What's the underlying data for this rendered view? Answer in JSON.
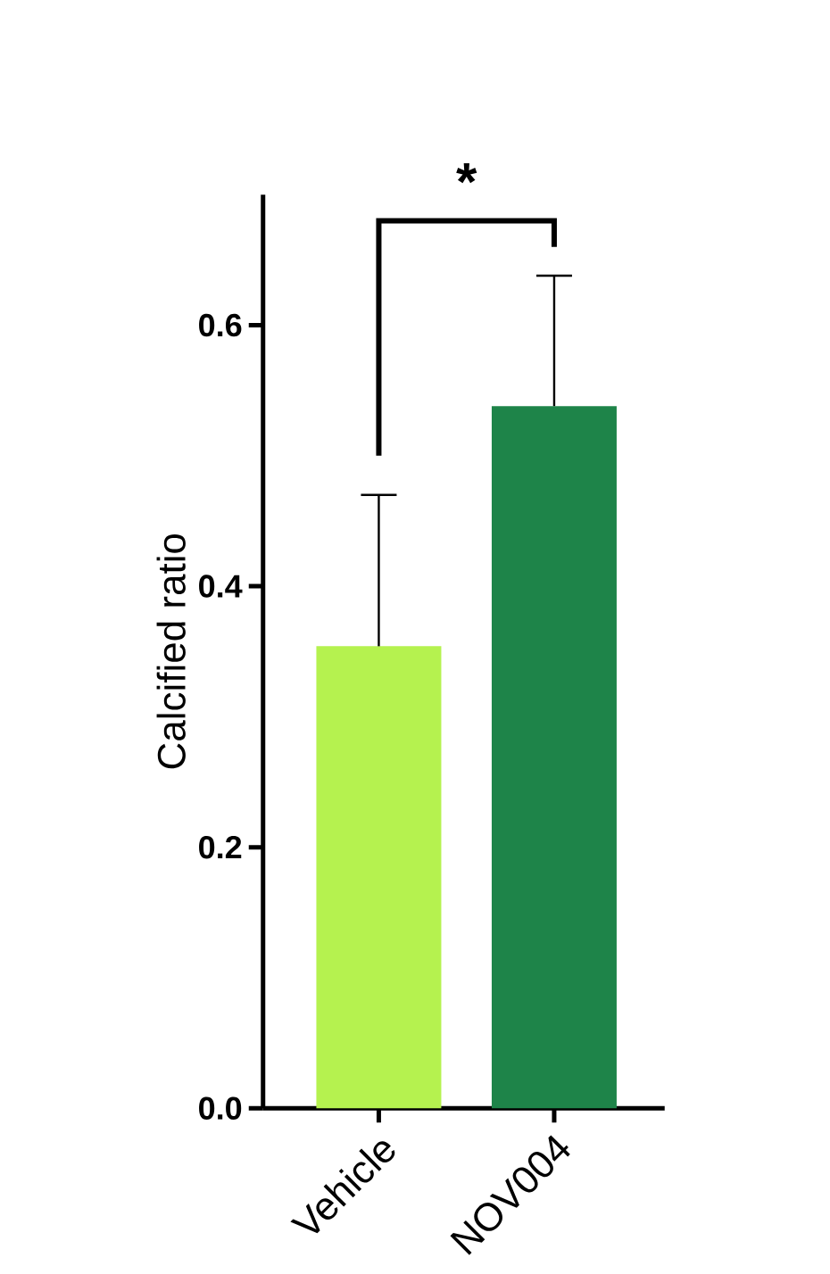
{
  "chart_data": {
    "type": "bar",
    "ylabel": "Calcified ratio",
    "categories": [
      "Vehicle",
      "NOV004"
    ],
    "values": [
      0.354,
      0.538
    ],
    "colors": [
      "#b5f24f",
      "#1e8449"
    ],
    "errors": [
      [
        0.354,
        0.47
      ],
      [
        0.538,
        0.638
      ]
    ],
    "ylim": [
      0,
      0.7
    ],
    "yticks": [
      {
        "value": 0,
        "label": "0.0"
      },
      {
        "value": 0.2,
        "label": "0.2"
      },
      {
        "value": 0.4,
        "label": "0.4"
      },
      {
        "value": 0.6,
        "label": "0.6"
      }
    ],
    "annotations": [
      "*"
    ],
    "grid": false
  }
}
